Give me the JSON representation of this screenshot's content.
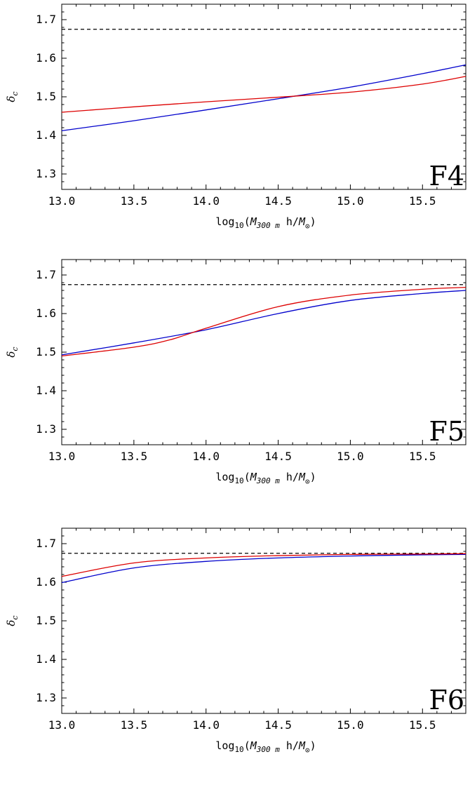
{
  "chart_data": [
    {
      "type": "line",
      "panel_tag": "F4",
      "xlabel": {
        "pre": "log",
        "sub1": "10",
        "open": "(",
        "M": "M",
        "sub2": "300 m",
        "mid": " h/",
        "M2": "M",
        "sub3": "⊙",
        "close": ")"
      },
      "ylabel": {
        "main": "δ",
        "sub": "c"
      },
      "xlim": [
        13.0,
        15.8
      ],
      "ylim": [
        1.26,
        1.74
      ],
      "xticks": [
        "13.0",
        "13.5",
        "14.0",
        "14.5",
        "15.0",
        "15.5"
      ],
      "yticks": [
        "1.3",
        "1.4",
        "1.5",
        "1.6",
        "1.7"
      ],
      "grid": false,
      "reference_line": {
        "y": 1.675,
        "style": "dashed",
        "color": "#000000"
      },
      "series": [
        {
          "color": "#0000cc",
          "x": [
            13.0,
            13.5,
            14.0,
            14.5,
            15.0,
            15.5,
            15.8
          ],
          "y": [
            1.412,
            1.438,
            1.466,
            1.495,
            1.525,
            1.56,
            1.583
          ]
        },
        {
          "color": "#dd0000",
          "x": [
            13.0,
            13.5,
            14.0,
            14.5,
            15.0,
            15.5,
            15.8
          ],
          "y": [
            1.46,
            1.474,
            1.487,
            1.499,
            1.512,
            1.533,
            1.553
          ]
        }
      ]
    },
    {
      "type": "line",
      "panel_tag": "F5",
      "xlabel": {
        "pre": "log",
        "sub1": "10",
        "open": "(",
        "M": "M",
        "sub2": "300 m",
        "mid": " h/",
        "M2": "M",
        "sub3": "⊙",
        "close": ")"
      },
      "ylabel": {
        "main": "δ",
        "sub": "c"
      },
      "xlim": [
        13.0,
        15.8
      ],
      "ylim": [
        1.26,
        1.74
      ],
      "xticks": [
        "13.0",
        "13.5",
        "14.0",
        "14.5",
        "15.0",
        "15.5"
      ],
      "yticks": [
        "1.3",
        "1.4",
        "1.5",
        "1.6",
        "1.7"
      ],
      "grid": false,
      "reference_line": {
        "y": 1.675,
        "style": "dashed",
        "color": "#000000"
      },
      "series": [
        {
          "color": "#0000cc",
          "x": [
            13.0,
            13.5,
            14.0,
            14.5,
            15.0,
            15.5,
            15.8
          ],
          "y": [
            1.493,
            1.524,
            1.558,
            1.6,
            1.634,
            1.652,
            1.66
          ]
        },
        {
          "color": "#dd0000",
          "x": [
            13.0,
            13.5,
            13.75,
            14.0,
            14.5,
            15.0,
            15.5,
            15.8
          ],
          "y": [
            1.49,
            1.513,
            1.532,
            1.562,
            1.618,
            1.648,
            1.663,
            1.668
          ]
        }
      ]
    },
    {
      "type": "line",
      "panel_tag": "F6",
      "xlabel": {
        "pre": "log",
        "sub1": "10",
        "open": "(",
        "M": "M",
        "sub2": "300 m",
        "mid": " h/",
        "M2": "M",
        "sub3": "⊙",
        "close": ")"
      },
      "ylabel": {
        "main": "δ",
        "sub": "c"
      },
      "xlim": [
        13.0,
        15.8
      ],
      "ylim": [
        1.26,
        1.74
      ],
      "xticks": [
        "13.0",
        "13.5",
        "14.0",
        "14.5",
        "15.0",
        "15.5"
      ],
      "yticks": [
        "1.3",
        "1.4",
        "1.5",
        "1.6",
        "1.7"
      ],
      "grid": false,
      "reference_line": {
        "y": 1.675,
        "style": "dashed",
        "color": "#000000"
      },
      "series": [
        {
          "color": "#0000cc",
          "x": [
            13.0,
            13.5,
            14.0,
            14.5,
            15.0,
            15.5,
            15.8
          ],
          "y": [
            1.599,
            1.637,
            1.654,
            1.663,
            1.668,
            1.671,
            1.672
          ]
        },
        {
          "color": "#dd0000",
          "x": [
            13.0,
            13.5,
            14.0,
            14.5,
            15.0,
            15.5,
            15.8
          ],
          "y": [
            1.615,
            1.65,
            1.663,
            1.669,
            1.672,
            1.673,
            1.674
          ]
        }
      ]
    }
  ]
}
